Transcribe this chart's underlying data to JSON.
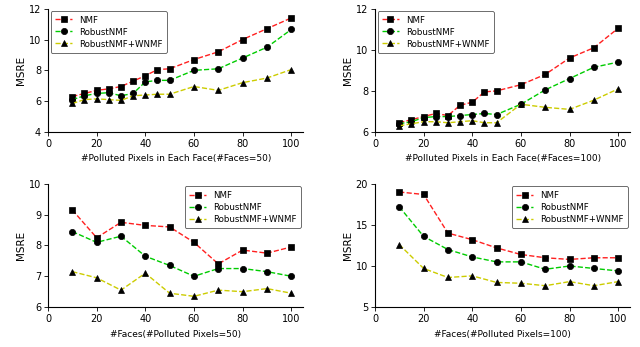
{
  "top_left": {
    "xlabel": "#Polluted Pixels in Each Face(#Faces=50)",
    "ylabel": "MSRE",
    "xlim": [
      0,
      105
    ],
    "ylim": [
      4,
      12
    ],
    "yticks": [
      4,
      6,
      8,
      10,
      12
    ],
    "xticks": [
      0,
      20,
      40,
      60,
      80,
      100
    ],
    "x": [
      10,
      15,
      20,
      25,
      30,
      35,
      40,
      45,
      50,
      60,
      70,
      80,
      90,
      100
    ],
    "nmf": [
      6.3,
      6.5,
      6.7,
      6.8,
      6.95,
      7.3,
      7.65,
      8.05,
      8.1,
      8.7,
      9.2,
      10.0,
      10.7,
      11.4
    ],
    "robustnmf": [
      6.1,
      6.35,
      6.5,
      6.55,
      6.35,
      6.5,
      7.25,
      7.35,
      7.35,
      8.0,
      8.1,
      8.8,
      9.5,
      10.65
    ],
    "wnmf": [
      5.85,
      6.1,
      6.15,
      6.1,
      6.05,
      6.35,
      6.4,
      6.45,
      6.45,
      6.95,
      6.7,
      7.2,
      7.5,
      8.05
    ],
    "legend_loc": "upper left"
  },
  "top_right": {
    "xlabel": "#Polluted Pixels in Each Face(#Faces=100)",
    "ylabel": "MSRE",
    "xlim": [
      0,
      105
    ],
    "ylim": [
      6,
      12
    ],
    "yticks": [
      6,
      8,
      10,
      12
    ],
    "xticks": [
      0,
      20,
      40,
      60,
      80,
      100
    ],
    "x": [
      10,
      15,
      20,
      25,
      30,
      35,
      40,
      45,
      50,
      60,
      70,
      80,
      90,
      100
    ],
    "nmf": [
      6.45,
      6.6,
      6.75,
      6.9,
      6.8,
      7.3,
      7.45,
      7.95,
      8.0,
      8.3,
      8.8,
      9.6,
      10.1,
      11.05
    ],
    "robustnmf": [
      6.4,
      6.5,
      6.7,
      6.75,
      6.75,
      6.8,
      6.85,
      6.9,
      6.85,
      7.35,
      8.05,
      8.6,
      9.15,
      9.4
    ],
    "wnmf": [
      6.3,
      6.4,
      6.5,
      6.5,
      6.45,
      6.5,
      6.55,
      6.45,
      6.45,
      7.35,
      7.2,
      7.1,
      7.55,
      8.1
    ],
    "legend_loc": "upper left"
  },
  "bottom_left": {
    "xlabel": "#Faces(#Polluted Pixels=50)",
    "ylabel": "MSRE",
    "xlim": [
      0,
      105
    ],
    "ylim": [
      6,
      10
    ],
    "yticks": [
      6,
      7,
      8,
      9,
      10
    ],
    "xticks": [
      0,
      20,
      40,
      60,
      80,
      100
    ],
    "x": [
      10,
      20,
      30,
      40,
      50,
      60,
      70,
      80,
      90,
      100
    ],
    "nmf": [
      9.15,
      8.25,
      8.75,
      8.65,
      8.6,
      8.1,
      7.4,
      7.85,
      7.75,
      7.95
    ],
    "robustnmf": [
      8.45,
      8.1,
      8.3,
      7.65,
      7.35,
      7.0,
      7.25,
      7.25,
      7.15,
      7.0
    ],
    "wnmf": [
      7.15,
      6.95,
      6.55,
      7.1,
      6.45,
      6.35,
      6.55,
      6.5,
      6.6,
      6.45
    ],
    "legend_loc": "upper right"
  },
  "bottom_right": {
    "xlabel": "#Faces(#Polluted Pixels=100)",
    "ylabel": "MSRE",
    "xlim": [
      0,
      105
    ],
    "ylim": [
      5,
      20
    ],
    "yticks": [
      5,
      10,
      15,
      20
    ],
    "xticks": [
      0,
      20,
      40,
      60,
      80,
      100
    ],
    "x": [
      10,
      20,
      30,
      40,
      50,
      60,
      70,
      80,
      90,
      100
    ],
    "nmf": [
      19.0,
      18.7,
      14.0,
      13.2,
      12.2,
      11.4,
      11.0,
      10.8,
      11.0,
      11.0
    ],
    "robustnmf": [
      17.2,
      13.6,
      12.0,
      11.1,
      10.5,
      10.5,
      9.6,
      10.0,
      9.7,
      9.4
    ],
    "wnmf": [
      12.6,
      9.7,
      8.6,
      8.8,
      8.0,
      7.9,
      7.6,
      8.1,
      7.6,
      8.1
    ],
    "legend_loc": "upper right"
  },
  "legend_labels": [
    "NMF",
    "RobustNMF",
    "RobustNMF+WNMF"
  ],
  "nmf_color": "#ff2020",
  "robust_color": "#00cc00",
  "wnmf_color": "#cccc00"
}
